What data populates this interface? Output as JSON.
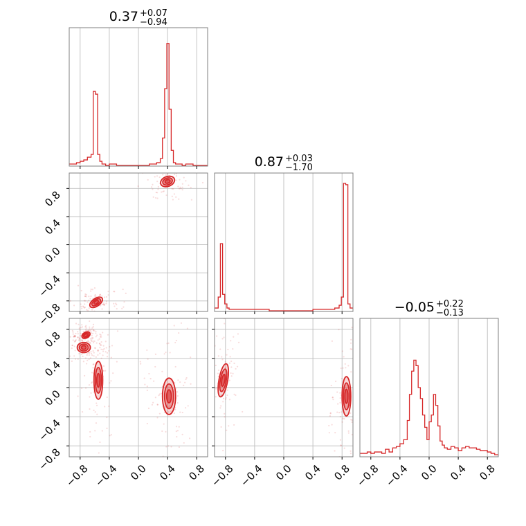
{
  "chart_data": {
    "type": "corner",
    "color": "#d62728",
    "parameters": [
      {
        "title_main": "0.37",
        "title_up": "+0.07",
        "title_down": "−0.94",
        "median": 0.37,
        "err_plus": 0.07,
        "err_minus": 0.94
      },
      {
        "title_main": "0.87",
        "title_up": "+0.03",
        "title_down": "−1.70",
        "median": 0.87,
        "err_plus": 0.03,
        "err_minus": 1.7
      },
      {
        "title_main": "−0.05",
        "title_up": "+0.22",
        "title_down": "−0.13",
        "median": -0.05,
        "err_plus": 0.22,
        "err_minus": 0.13
      }
    ],
    "x_ranges": [
      [
        -0.95,
        0.95
      ],
      [
        -0.95,
        0.95
      ],
      [
        -0.95,
        0.95
      ]
    ],
    "y_ranges": {
      "row1": [
        -0.95,
        1.02
      ],
      "row2": [
        -0.95,
        0.95
      ]
    },
    "x_ticks": [
      -0.8,
      -0.4,
      0.0,
      0.4,
      0.8
    ],
    "x_tick_labels": [
      "−0.8",
      "−0.4",
      "0.0",
      "0.4",
      "0.8"
    ],
    "y_ticks": [
      -0.8,
      -0.4,
      0.0,
      0.4,
      0.8
    ],
    "y_tick_labels": [
      "−0.8",
      "−0.4",
      "0.0",
      "0.4",
      "0.8"
    ],
    "grid": true,
    "histograms": [
      {
        "bins": [
          -0.95,
          -0.9,
          -0.85,
          -0.8,
          -0.75,
          -0.7,
          -0.65,
          -0.62,
          -0.59,
          -0.56,
          -0.53,
          -0.5,
          -0.45,
          -0.4,
          -0.35,
          -0.3,
          -0.25,
          -0.2,
          -0.15,
          -0.1,
          -0.05,
          0.0,
          0.05,
          0.1,
          0.15,
          0.2,
          0.25,
          0.3,
          0.33,
          0.36,
          0.39,
          0.42,
          0.45,
          0.48,
          0.51,
          0.55,
          0.6,
          0.65,
          0.7,
          0.75,
          0.8,
          0.85,
          0.9,
          0.95
        ],
        "counts": [
          0.01,
          0.01,
          0.02,
          0.03,
          0.04,
          0.06,
          0.08,
          0.54,
          0.52,
          0.08,
          0.03,
          0.01,
          0.0,
          0.01,
          0.01,
          0.0,
          0.0,
          0.0,
          0.0,
          0.0,
          0.0,
          0.0,
          0.0,
          0.0,
          0.01,
          0.01,
          0.02,
          0.05,
          0.2,
          0.56,
          0.89,
          0.41,
          0.11,
          0.02,
          0.01,
          0.01,
          0.0,
          0.01,
          0.01,
          0.0,
          0.0,
          0.0,
          0.0
        ]
      },
      {
        "bins": [
          -0.95,
          -0.9,
          -0.87,
          -0.84,
          -0.81,
          -0.78,
          -0.75,
          -0.7,
          -0.6,
          -0.5,
          -0.4,
          -0.3,
          -0.2,
          -0.1,
          0.0,
          0.1,
          0.2,
          0.3,
          0.4,
          0.5,
          0.6,
          0.7,
          0.76,
          0.79,
          0.82,
          0.85,
          0.88,
          0.91,
          0.95
        ],
        "counts": [
          0.02,
          0.1,
          0.49,
          0.12,
          0.05,
          0.02,
          0.01,
          0.01,
          0.01,
          0.01,
          0.01,
          0.01,
          0.0,
          0.0,
          0.0,
          0.0,
          0.0,
          0.0,
          0.01,
          0.01,
          0.01,
          0.02,
          0.04,
          0.1,
          0.93,
          0.92,
          0.05,
          0.02
        ]
      },
      {
        "bins": [
          -0.95,
          -0.9,
          -0.85,
          -0.8,
          -0.75,
          -0.7,
          -0.65,
          -0.6,
          -0.55,
          -0.5,
          -0.45,
          -0.4,
          -0.35,
          -0.3,
          -0.27,
          -0.24,
          -0.21,
          -0.18,
          -0.15,
          -0.12,
          -0.09,
          -0.06,
          -0.03,
          0.0,
          0.03,
          0.06,
          0.09,
          0.12,
          0.15,
          0.18,
          0.21,
          0.25,
          0.3,
          0.35,
          0.4,
          0.45,
          0.5,
          0.55,
          0.6,
          0.65,
          0.7,
          0.75,
          0.8,
          0.85,
          0.9,
          0.95
        ],
        "counts": [
          0.02,
          0.02,
          0.03,
          0.02,
          0.03,
          0.03,
          0.02,
          0.05,
          0.03,
          0.06,
          0.07,
          0.09,
          0.12,
          0.26,
          0.45,
          0.62,
          0.7,
          0.66,
          0.5,
          0.42,
          0.3,
          0.21,
          0.12,
          0.25,
          0.3,
          0.45,
          0.37,
          0.22,
          0.11,
          0.08,
          0.06,
          0.05,
          0.07,
          0.06,
          0.04,
          0.06,
          0.07,
          0.06,
          0.06,
          0.05,
          0.04,
          0.04,
          0.03,
          0.02,
          0.01
        ]
      }
    ],
    "contours_2d": [
      {
        "panel": "x1-x2",
        "blobs": [
          {
            "cx": 0.4,
            "cy": 0.9,
            "rx": 0.1,
            "ry": 0.07,
            "angle": -20
          },
          {
            "cx": -0.58,
            "cy": -0.82,
            "rx": 0.1,
            "ry": 0.055,
            "angle": -35
          }
        ]
      },
      {
        "panel": "x1-x3",
        "blobs": [
          {
            "cx": -0.55,
            "cy": 0.1,
            "rx": 0.06,
            "ry": 0.26,
            "angle": 0
          },
          {
            "cx": 0.42,
            "cy": -0.12,
            "rx": 0.09,
            "ry": 0.25,
            "angle": 0
          },
          {
            "cx": -0.75,
            "cy": 0.55,
            "rx": 0.09,
            "ry": 0.07,
            "angle": 0
          },
          {
            "cx": -0.72,
            "cy": 0.72,
            "rx": 0.06,
            "ry": 0.04,
            "angle": -30
          }
        ]
      },
      {
        "panel": "x2-x3",
        "blobs": [
          {
            "cx": -0.83,
            "cy": 0.1,
            "rx": 0.06,
            "ry": 0.23,
            "angle": 10
          },
          {
            "cx": 0.86,
            "cy": -0.12,
            "rx": 0.06,
            "ry": 0.27,
            "angle": 0
          }
        ]
      }
    ]
  }
}
